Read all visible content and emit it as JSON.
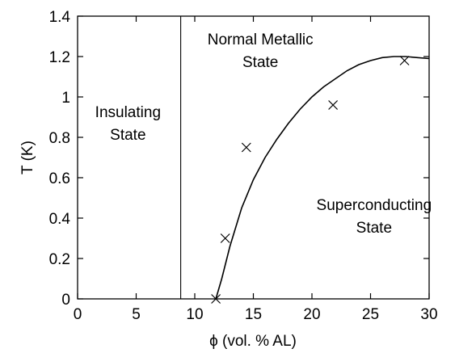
{
  "chart_data": {
    "type": "scatter",
    "xlabel": "ϕ (vol. % AL)",
    "ylabel": "T (K)",
    "xlim": [
      0,
      30
    ],
    "ylim": [
      0,
      1.4
    ],
    "x_ticks": [
      "0",
      "5",
      "10",
      "15",
      "20",
      "25",
      "30"
    ],
    "y_ticks": [
      "0",
      "0.2",
      "0.4",
      "0.6",
      "0.8",
      "1",
      "1.2",
      "1.4"
    ],
    "grid": false,
    "legend": "none",
    "marker": "x",
    "points": [
      {
        "x": 11.8,
        "y": 0.0
      },
      {
        "x": 12.6,
        "y": 0.3
      },
      {
        "x": 14.4,
        "y": 0.75
      },
      {
        "x": 21.8,
        "y": 0.96
      },
      {
        "x": 27.9,
        "y": 1.18
      }
    ],
    "fit_curve": [
      {
        "x": 11.8,
        "y": 0.0
      },
      {
        "x": 12.3,
        "y": 0.1
      },
      {
        "x": 13.0,
        "y": 0.26
      },
      {
        "x": 14.0,
        "y": 0.45
      },
      {
        "x": 15.0,
        "y": 0.59
      },
      {
        "x": 16.0,
        "y": 0.7
      },
      {
        "x": 17.0,
        "y": 0.79
      },
      {
        "x": 18.0,
        "y": 0.87
      },
      {
        "x": 19.0,
        "y": 0.94
      },
      {
        "x": 20.0,
        "y": 1.0
      },
      {
        "x": 21.0,
        "y": 1.05
      },
      {
        "x": 22.0,
        "y": 1.09
      },
      {
        "x": 23.0,
        "y": 1.13
      },
      {
        "x": 24.0,
        "y": 1.16
      },
      {
        "x": 25.0,
        "y": 1.18
      },
      {
        "x": 26.0,
        "y": 1.195
      },
      {
        "x": 27.0,
        "y": 1.2
      },
      {
        "x": 28.0,
        "y": 1.2
      },
      {
        "x": 29.0,
        "y": 1.195
      },
      {
        "x": 30.0,
        "y": 1.19
      }
    ],
    "boundary_x": 8.8,
    "regions": [
      {
        "lines": [
          "Insulating",
          "State"
        ],
        "x": 4.3,
        "y": 0.9
      },
      {
        "lines": [
          "Normal  Metallic",
          "State"
        ],
        "x": 15.6,
        "y": 1.26
      },
      {
        "lines": [
          "Superconducting",
          "State"
        ],
        "x": 25.3,
        "y": 0.44
      }
    ]
  }
}
